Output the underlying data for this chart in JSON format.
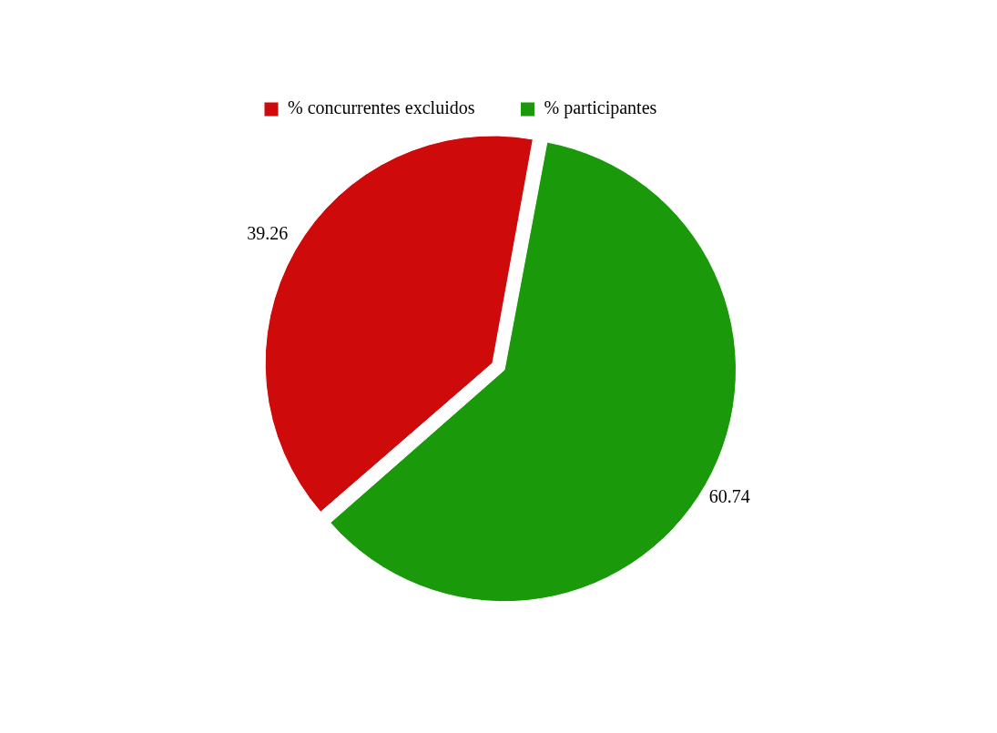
{
  "chart_data": {
    "type": "pie",
    "categories": [
      "% concurrentes excluidos",
      "% participantes"
    ],
    "values": [
      39.26,
      60.74
    ],
    "colors": [
      "#cf0a0a",
      "#1a9a0a"
    ],
    "data_labels": true,
    "legend": "top left"
  }
}
